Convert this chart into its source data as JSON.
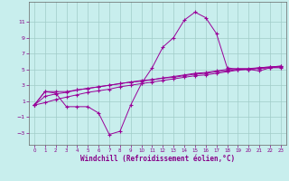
{
  "xlabel": "Windchill (Refroidissement éolien,°C)",
  "x": [
    0,
    1,
    2,
    3,
    4,
    5,
    6,
    7,
    8,
    9,
    10,
    11,
    12,
    13,
    14,
    15,
    16,
    17,
    18,
    19,
    20,
    21,
    22,
    23
  ],
  "line1": [
    0.5,
    2.2,
    2.0,
    0.3,
    0.3,
    0.3,
    -0.5,
    -3.2,
    -2.8,
    0.5,
    3.2,
    5.2,
    7.8,
    9.0,
    11.2,
    12.2,
    11.5,
    9.5,
    5.2,
    5.0,
    5.0,
    4.8,
    5.2,
    5.2
  ],
  "line2": [
    0.5,
    2.2,
    2.2,
    2.2,
    2.4,
    2.6,
    2.8,
    3.0,
    3.2,
    3.4,
    3.6,
    3.7,
    3.9,
    4.1,
    4.3,
    4.5,
    4.6,
    4.8,
    5.0,
    5.1,
    5.1,
    5.2,
    5.3,
    5.4
  ],
  "line3": [
    0.5,
    1.6,
    1.9,
    2.1,
    2.4,
    2.6,
    2.8,
    3.0,
    3.2,
    3.4,
    3.5,
    3.7,
    3.9,
    4.0,
    4.2,
    4.4,
    4.5,
    4.7,
    4.8,
    5.0,
    5.0,
    5.2,
    5.3,
    5.4
  ],
  "line4": [
    0.5,
    0.8,
    1.2,
    1.5,
    1.8,
    2.1,
    2.3,
    2.5,
    2.8,
    3.0,
    3.2,
    3.4,
    3.6,
    3.8,
    4.0,
    4.2,
    4.3,
    4.5,
    4.7,
    4.9,
    5.0,
    5.1,
    5.2,
    5.3
  ],
  "line_color": "#990099",
  "bg_color": "#c8eeed",
  "grid_color": "#a0ccc8",
  "axis_color": "#666666",
  "label_color": "#880088",
  "ylim": [
    -4.5,
    13.5
  ],
  "xlim": [
    -0.5,
    23.5
  ],
  "yticks": [
    -3,
    -1,
    1,
    3,
    5,
    7,
    9,
    11
  ],
  "xticks": [
    0,
    1,
    2,
    3,
    4,
    5,
    6,
    7,
    8,
    9,
    10,
    11,
    12,
    13,
    14,
    15,
    16,
    17,
    18,
    19,
    20,
    21,
    22,
    23
  ]
}
